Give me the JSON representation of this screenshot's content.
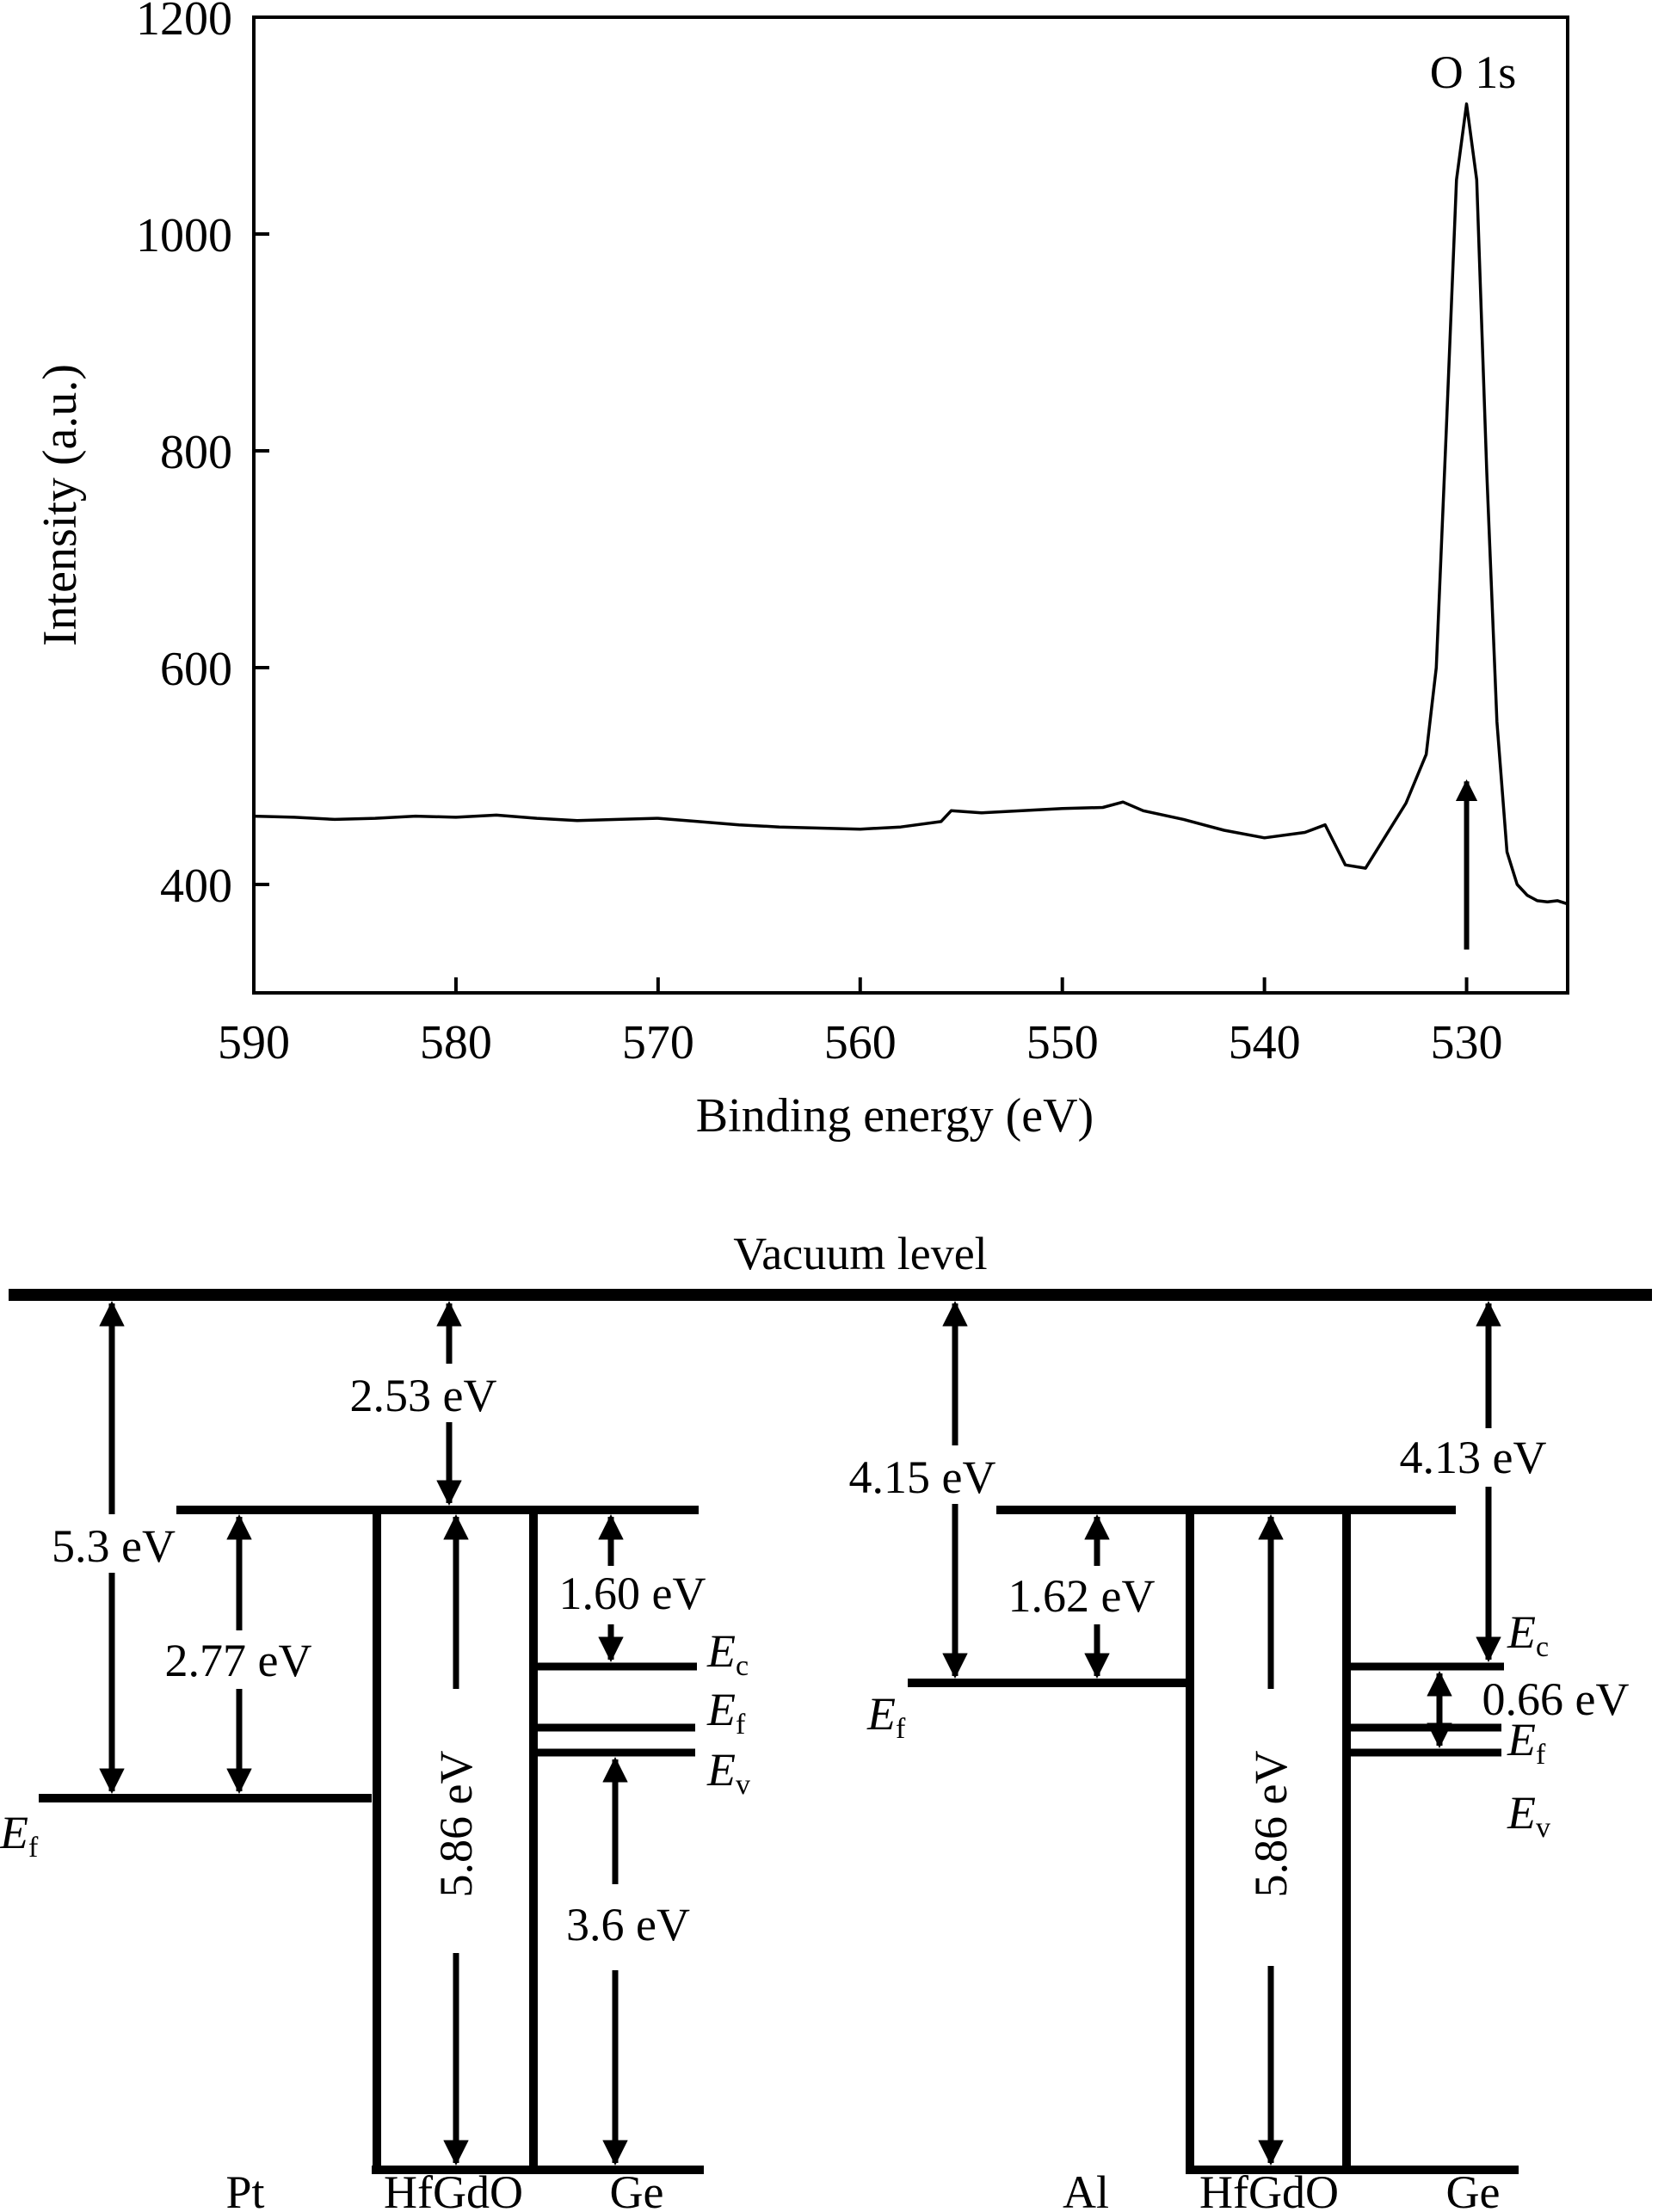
{
  "chart_data": [
    {
      "type": "line",
      "title": "",
      "xlabel": "Binding energy (eV)",
      "ylabel": "Intensity (a.u.)",
      "xlim": [
        590,
        525
      ],
      "ylim": [
        300,
        1200
      ],
      "x_ticks": [
        590,
        580,
        570,
        560,
        550,
        540,
        530
      ],
      "y_ticks": [
        400,
        600,
        800,
        1000,
        1200
      ],
      "grid": false,
      "annotations": [
        {
          "text": "O 1s",
          "x": 530,
          "y": 1120,
          "arrow_from_y": 340,
          "arrow_to_y": 495
        }
      ],
      "series": [
        {
          "x": [
            590,
            588,
            586,
            584,
            582,
            580,
            578,
            576,
            574,
            572,
            570,
            568,
            566,
            564,
            562,
            560,
            558,
            556,
            555.5,
            554,
            552,
            550,
            548,
            547,
            546,
            544,
            542,
            540,
            538,
            537,
            536,
            535,
            534,
            533,
            532,
            531.5,
            531,
            530.5,
            530,
            529.5,
            529,
            528.5,
            528,
            527.5,
            527,
            526.5,
            526,
            525.5,
            525
          ],
          "y": [
            463,
            462,
            460,
            461,
            463,
            462,
            464,
            461,
            459,
            460,
            461,
            458,
            455,
            453,
            452,
            451,
            453,
            458,
            468,
            466,
            468,
            470,
            471,
            476,
            468,
            460,
            450,
            443,
            448,
            455,
            418,
            415,
            445,
            475,
            520,
            600,
            820,
            1050,
            1120,
            1050,
            780,
            550,
            430,
            400,
            390,
            385,
            384,
            385,
            382
          ]
        }
      ]
    },
    {
      "type": "diagram",
      "title": "Vacuum level",
      "panels": [
        {
          "materials": [
            "Pt",
            "HfGdO",
            "Ge"
          ],
          "energies": [
            "5.3 eV",
            "2.53 eV",
            "2.77 eV",
            "1.60 eV",
            "5.86 eV",
            "3.6 eV"
          ],
          "levels": {
            "Ec": "E",
            "Ec_sub": "c",
            "Ef": "E",
            "Ef_sub": "f",
            "Ev": "E",
            "Ev_sub": "v",
            "metal_Ef": "E",
            "metal_Ef_sub": "f"
          }
        },
        {
          "materials": [
            "Al",
            "HfGdO",
            "Ge"
          ],
          "energies": [
            "4.15 eV",
            "4.13 eV",
            "1.62 eV",
            "0.66 eV",
            "5.86 eV"
          ],
          "levels": {
            "Ec": "E",
            "Ec_sub": "c",
            "Ef": "E",
            "Ef_sub": "f",
            "Ev": "E",
            "Ev_sub": "v",
            "metal_Ef": "E",
            "metal_Ef_sub": "f"
          }
        }
      ]
    }
  ]
}
